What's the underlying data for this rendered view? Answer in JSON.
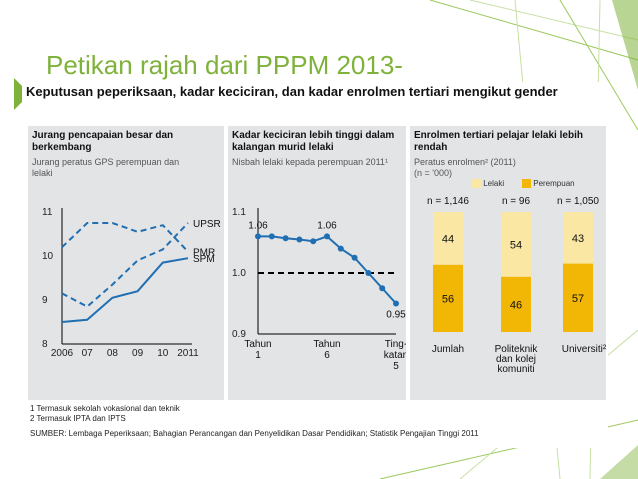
{
  "slide": {
    "title": "Petikan rajah dari PPPM 2013-",
    "accent_color": "#7fb23a"
  },
  "figure": {
    "title": "Keputusan peperiksaan, kadar keciciran, dan kadar enrolmen tertiari mengikut gender",
    "footnote1": "1 Termasuk sekolah vokasional dan teknik",
    "footnote2": "2 Termasuk IPTA dan IPTS",
    "source": "SUMBER: Lembaga Peperiksaan; Bahagian Perancangan dan Penyelidikan Dasar Pendidikan; Statistik Pengajian Tinggi 2011"
  },
  "panels": {
    "p1": {
      "title": "Jurang pencapaian besar dan berkembang",
      "subtitle": "Jurang peratus GPS perempuan dan lelaki"
    },
    "p2": {
      "title": "Kadar keciciran lebih tinggi dalam kalangan murid lelaki",
      "subtitle": "Nisbah lelaki kepada perempuan 2011¹"
    },
    "p3": {
      "title": "Enrolmen tertiari pelajar lelaki lebih rendah",
      "subtitle": "Peratus enrolmen² (2011)",
      "subtitle2": "(n = '000)",
      "legend_male": "Lelaki",
      "legend_female": "Perempuan"
    }
  },
  "chart_data": [
    {
      "type": "line",
      "x": [
        "2006",
        "07",
        "08",
        "09",
        "10",
        "2011"
      ],
      "ylim": [
        8,
        11
      ],
      "yticks": [
        "8",
        "9",
        "10",
        "11"
      ],
      "series": [
        {
          "name": "PMR",
          "values": [
            10.2,
            10.75,
            10.75,
            10.55,
            10.7,
            10.1
          ],
          "style": "dashed"
        },
        {
          "name": "UPSR",
          "values": [
            9.15,
            8.85,
            9.35,
            9.9,
            10.15,
            10.75
          ],
          "style": "dashed"
        },
        {
          "name": "SPM",
          "values": [
            8.5,
            8.55,
            9.05,
            9.2,
            9.85,
            9.95
          ],
          "style": "solid"
        }
      ]
    },
    {
      "type": "line",
      "ylim": [
        0.9,
        1.1
      ],
      "yticks": [
        "0.9",
        "1.0",
        "1.1"
      ],
      "x_labels": [
        "Tahun 1",
        "Tahun 6",
        "Ting-katan 5"
      ],
      "x_label_parts": [
        [
          "Tahun",
          "1"
        ],
        [
          "Tahun",
          "6"
        ],
        [
          "Ting-",
          "katan",
          "5"
        ]
      ],
      "reference_line": 1.0,
      "values": [
        1.06,
        1.06,
        1.057,
        1.055,
        1.052,
        1.06,
        1.04,
        1.025,
        1.0,
        0.975,
        0.95
      ],
      "data_labels": [
        {
          "index": 0,
          "text": "1.06"
        },
        {
          "index": 5,
          "text": "1.06"
        },
        {
          "index": 10,
          "text": "0.95"
        }
      ],
      "colors": {
        "line": "#1f6fb2",
        "reference": "#000000"
      }
    },
    {
      "type": "bar",
      "stacked": true,
      "categories": [
        "Jumlah",
        "Politeknik dan kolej komuniti",
        "Universiti²"
      ],
      "category_label_parts": [
        [
          "Jumlah"
        ],
        [
          "Politeknik",
          "dan kolej",
          "komuniti"
        ],
        [
          "Universiti²"
        ]
      ],
      "n_labels": [
        "n = 1,146",
        "n = 96",
        "n = 1,050"
      ],
      "series": [
        {
          "name": "Perempuan",
          "values": [
            56,
            46,
            57
          ],
          "color": "#f2b705"
        },
        {
          "name": "Lelaki",
          "values": [
            44,
            54,
            43
          ],
          "color": "#fbe7a4"
        }
      ],
      "ylim": [
        0,
        100
      ]
    }
  ]
}
